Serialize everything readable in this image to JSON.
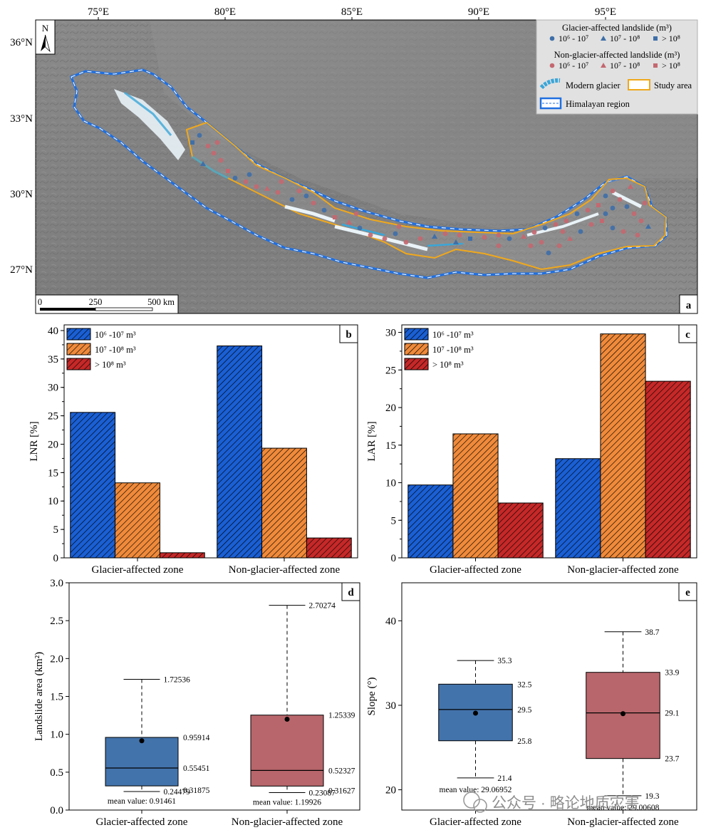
{
  "map": {
    "panel_label": "a",
    "north_label": "N",
    "lon_ticks": [
      "75°E",
      "80°E",
      "85°E",
      "90°E",
      "95°E"
    ],
    "lat_ticks": [
      "36°N",
      "33°N",
      "30°N",
      "27°N"
    ],
    "scale_labels": [
      "0",
      "250",
      "500 km"
    ],
    "legend": {
      "glacier_title": "Glacier-affected landslide (m³)",
      "glacier_items": [
        "10⁶ - 10⁷",
        "10⁷ - 10⁸",
        "> 10⁸"
      ],
      "non_glacier_title": "Non-glacier-affected landslide (m³)",
      "non_glacier_items": [
        "10⁶ - 10⁷",
        "10⁷ - 10⁸",
        "> 10⁸"
      ],
      "modern_glacier": "Modern glacier",
      "study_area": "Study area",
      "himalayan_region": "Himalayan region"
    },
    "colors": {
      "glacier_marker": "#3f6fa8",
      "non_glacier_marker": "#c46870",
      "glacier_fill": "#3aa6d8",
      "study_area": "#f0a81c",
      "region": "#1f6fe0"
    }
  },
  "chart_data": [
    {
      "panel": "b",
      "type": "bar",
      "categories": [
        "Glacier-affected zone",
        "Non-glacier-affected zone"
      ],
      "ylabel": "LNR [%]",
      "xlabel": "",
      "ylim": [
        0,
        41
      ],
      "yticks": [
        0,
        5,
        10,
        15,
        20,
        25,
        30,
        35,
        40
      ],
      "series": [
        {
          "name": "10⁶ -10⁷ m³",
          "color": "#1a5fd4",
          "values": [
            25.6,
            37.3
          ]
        },
        {
          "name": "10⁷ -10⁸ m³",
          "color": "#f08a3a",
          "values": [
            13.2,
            19.3
          ]
        },
        {
          "name": "> 10⁸ m³",
          "color": "#c62828",
          "values": [
            0.9,
            3.5
          ]
        }
      ],
      "legend": "top-left",
      "grid": false
    },
    {
      "panel": "c",
      "type": "bar",
      "categories": [
        "Glacier-affected zone",
        "Non-glacier-affected zone"
      ],
      "ylabel": "LAR [%]",
      "xlabel": "",
      "ylim": [
        0,
        31
      ],
      "yticks": [
        0,
        5,
        10,
        15,
        20,
        25,
        30
      ],
      "series": [
        {
          "name": "10⁶ -10⁷ m³",
          "color": "#1a5fd4",
          "values": [
            9.7,
            13.2
          ]
        },
        {
          "name": "10⁷ -10⁸ m³",
          "color": "#f08a3a",
          "values": [
            16.5,
            29.8
          ]
        },
        {
          "name": "> 10⁸ m³",
          "color": "#c62828",
          "values": [
            7.3,
            23.5
          ]
        }
      ],
      "legend": "top-left",
      "grid": false
    },
    {
      "panel": "d",
      "type": "box",
      "categories": [
        "Glacier-affected zone",
        "Non-glacier-affected zone"
      ],
      "ylabel": "Landslide area (km²)",
      "ylim": [
        0,
        3.0
      ],
      "yticks": [
        "0.0",
        "0.5",
        "1.0",
        "1.5",
        "2.0",
        "2.5",
        "3.0"
      ],
      "boxes": [
        {
          "min": 0.24479,
          "q1": 0.31875,
          "median": 0.55451,
          "q3": 0.95914,
          "max": 1.72536,
          "mean": 0.91461,
          "color": "#4373ab",
          "labels": {
            "min": "0.24479",
            "q1": "0.31875",
            "median": "0.55451",
            "q3": "0.95914",
            "max": "1.72536"
          },
          "mean_label": "mean value: 0.91461"
        },
        {
          "min": 0.23087,
          "q1": 0.31627,
          "median": 0.52327,
          "q3": 1.25339,
          "max": 2.70274,
          "mean": 1.19926,
          "color": "#b8666b",
          "labels": {
            "min": "0.23087",
            "q1": "0.31627",
            "median": "0.52327",
            "q3": "1.25339",
            "max": "2.70274"
          },
          "mean_label": "mean value: 1.19926"
        }
      ]
    },
    {
      "panel": "e",
      "type": "box",
      "categories": [
        "Glacier-affected zone",
        "Non-glacier-affected zone"
      ],
      "ylabel": "Slope (°)",
      "ylim": [
        17.6,
        44.5
      ],
      "yticks": [
        "20",
        "30",
        "40"
      ],
      "boxes": [
        {
          "min": 21.4,
          "q1": 25.8,
          "median": 29.5,
          "q3": 32.5,
          "max": 35.3,
          "mean": 29.06952,
          "color": "#4373ab",
          "labels": {
            "min": "21.4",
            "q1": "25.8",
            "median": "29.5",
            "q3": "32.5",
            "max": "35.3"
          },
          "mean_label": "mean value: 29.06952"
        },
        {
          "min": 19.3,
          "q1": 23.7,
          "median": 29.1,
          "q3": 33.9,
          "max": 38.7,
          "mean": 29.00608,
          "color": "#b8666b",
          "labels": {
            "min": "19.3",
            "q1": "23.7",
            "median": "29.1",
            "q3": "33.9",
            "max": "38.7"
          },
          "mean_label": "mean value: 29.00608"
        }
      ]
    }
  ],
  "watermark": "公众号 · 略论地质灾害"
}
